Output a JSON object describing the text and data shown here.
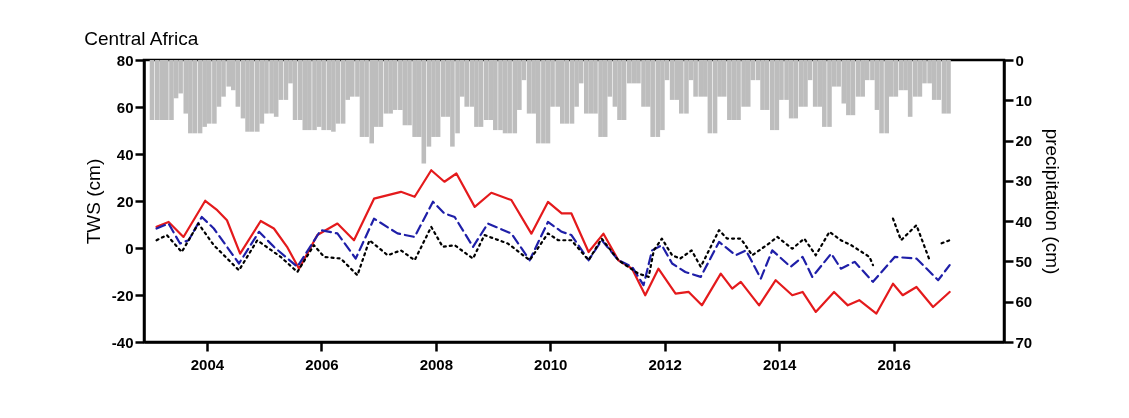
{
  "chart_data": {
    "type": "line",
    "title": "Central Africa",
    "ylabel": "TWS (cm)",
    "y2label": "precipitation (cm)",
    "xlim": [
      2002.9,
      2017.93
    ],
    "xticks": [
      2004,
      2006,
      2008,
      2010,
      2012,
      2014,
      2016
    ],
    "ylim": [
      -40,
      80
    ],
    "yticks": [
      -40,
      -20,
      0,
      20,
      40,
      60,
      80
    ],
    "y2lim": [
      70,
      0
    ],
    "y2ticks": [
      0,
      10,
      20,
      30,
      40,
      50,
      60,
      70
    ],
    "series": [
      {
        "type": "bar",
        "axis": "y2",
        "color": "#bdbdbd",
        "x": [
          2003.04,
          2003.13,
          2003.21,
          2003.29,
          2003.38,
          2003.46,
          2003.54,
          2003.63,
          2003.71,
          2003.79,
          2003.88,
          2003.96,
          2004.04,
          2004.13,
          2004.21,
          2004.29,
          2004.38,
          2004.46,
          2004.54,
          2004.63,
          2004.71,
          2004.79,
          2004.88,
          2004.96,
          2005.04,
          2005.13,
          2005.21,
          2005.29,
          2005.38,
          2005.46,
          2005.54,
          2005.63,
          2005.71,
          2005.79,
          2005.88,
          2005.96,
          2006.04,
          2006.13,
          2006.21,
          2006.29,
          2006.38,
          2006.46,
          2006.54,
          2006.63,
          2006.71,
          2006.79,
          2006.88,
          2006.96,
          2007.04,
          2007.13,
          2007.21,
          2007.29,
          2007.38,
          2007.46,
          2007.54,
          2007.63,
          2007.71,
          2007.79,
          2007.88,
          2007.96,
          2008.04,
          2008.13,
          2008.21,
          2008.29,
          2008.38,
          2008.46,
          2008.54,
          2008.63,
          2008.71,
          2008.79,
          2008.88,
          2008.96,
          2009.04,
          2009.13,
          2009.21,
          2009.29,
          2009.38,
          2009.46,
          2009.54,
          2009.63,
          2009.71,
          2009.79,
          2009.88,
          2009.96,
          2010.04,
          2010.13,
          2010.21,
          2010.29,
          2010.38,
          2010.46,
          2010.54,
          2010.63,
          2010.71,
          2010.79,
          2010.88,
          2010.96,
          2011.04,
          2011.13,
          2011.21,
          2011.29,
          2011.38,
          2011.46,
          2011.54,
          2011.63,
          2011.71,
          2011.79,
          2011.88,
          2011.96,
          2012.04,
          2012.13,
          2012.21,
          2012.29,
          2012.38,
          2012.46,
          2012.54,
          2012.63,
          2012.71,
          2012.79,
          2012.88,
          2012.96,
          2013.04,
          2013.13,
          2013.21,
          2013.29,
          2013.38,
          2013.46,
          2013.54,
          2013.63,
          2013.71,
          2013.79,
          2013.88,
          2013.96,
          2014.04,
          2014.13,
          2014.21,
          2014.29,
          2014.38,
          2014.46,
          2014.54,
          2014.63,
          2014.71,
          2014.79,
          2014.88,
          2014.96,
          2015.04,
          2015.13,
          2015.21,
          2015.29,
          2015.38,
          2015.46,
          2015.54,
          2015.63,
          2015.71,
          2015.79,
          2015.88,
          2015.96,
          2016.04,
          2016.13,
          2016.21,
          2016.29,
          2016.38,
          2016.46,
          2016.54,
          2016.63,
          2016.71,
          2016.79,
          2016.88,
          2016.96
        ],
        "values": [
          14.9,
          14.9,
          14.9,
          14.9,
          14.9,
          9.5,
          8.3,
          13.3,
          18.2,
          18.2,
          18.2,
          16.6,
          15.8,
          15.8,
          11.6,
          9.1,
          6.6,
          7.5,
          11.6,
          14.5,
          17.8,
          17.8,
          17.8,
          15.8,
          13.3,
          13.3,
          14.1,
          9.9,
          9.9,
          5.8,
          14.9,
          14.9,
          17.4,
          17.4,
          17.4,
          16.6,
          17.4,
          17.4,
          17.8,
          15.8,
          15.8,
          9.9,
          9.1,
          9.1,
          19.1,
          19.1,
          20.7,
          16.6,
          16.6,
          13.3,
          13.3,
          12.4,
          12.4,
          16.2,
          16.2,
          19.1,
          19.1,
          25.7,
          21.5,
          19.1,
          19.1,
          14.1,
          14.1,
          21.5,
          18.2,
          9.1,
          11.6,
          11.6,
          16.6,
          16.6,
          14.9,
          14.9,
          17.4,
          17.4,
          18.2,
          18.2,
          18.2,
          12.4,
          5.0,
          13.3,
          13.3,
          20.7,
          20.7,
          20.7,
          11.6,
          11.6,
          15.8,
          15.8,
          15.8,
          11.6,
          5.8,
          13.3,
          13.3,
          13.3,
          19.1,
          19.1,
          9.1,
          11.6,
          14.9,
          14.9,
          5.8,
          5.8,
          5.8,
          11.6,
          11.6,
          19.1,
          19.1,
          17.4,
          5.0,
          9.9,
          9.9,
          13.3,
          13.3,
          5.0,
          9.1,
          9.1,
          9.1,
          18.2,
          18.2,
          9.1,
          9.1,
          14.9,
          14.9,
          14.9,
          11.6,
          11.6,
          5.0,
          5.0,
          12.4,
          12.4,
          17.4,
          17.4,
          9.9,
          9.9,
          14.5,
          14.5,
          11.6,
          11.6,
          5.0,
          11.6,
          11.6,
          16.6,
          16.6,
          6.6,
          6.6,
          10.8,
          13.7,
          13.7,
          9.1,
          9.1,
          5.0,
          5.0,
          12.4,
          18.2,
          18.2,
          9.1,
          9.1,
          7.5,
          7.5,
          14.1,
          9.1,
          9.1,
          5.8,
          5.8,
          9.9,
          9.9,
          13.3,
          13.3
        ]
      },
      {
        "color": "#e41a1c",
        "line_style": "solid",
        "x": [
          2003.12,
          2003.33,
          2003.59,
          2003.97,
          2004.18,
          2004.35,
          2004.58,
          2004.94,
          2005.17,
          2005.4,
          2005.61,
          2005.93,
          2006.28,
          2006.57,
          2006.92,
          2007.39,
          2007.63,
          2007.92,
          2008.15,
          2008.36,
          2008.68,
          2008.97,
          2009.32,
          2009.67,
          2009.96,
          2010.2,
          2010.37,
          2010.67,
          2010.93,
          2011.19,
          2011.43,
          2011.66,
          2011.89,
          2012.19,
          2012.42,
          2012.65,
          2012.98,
          2013.18,
          2013.33,
          2013.65,
          2013.94,
          2014.23,
          2014.41,
          2014.64,
          2014.96,
          2015.2,
          2015.4,
          2015.7,
          2015.99,
          2016.16,
          2016.4,
          2016.69,
          2016.98
        ],
        "values": [
          9.0,
          11.1,
          4.7,
          20.1,
          16.1,
          11.8,
          -2.4,
          11.5,
          8.3,
          0.5,
          -8.8,
          5.5,
          10.4,
          3.3,
          21.0,
          23.9,
          21.8,
          33.1,
          28.2,
          31.7,
          17.5,
          23.5,
          20.4,
          6.1,
          19.6,
          14.7,
          14.7,
          -1.7,
          6.1,
          -5.2,
          -8.8,
          -20.1,
          -8.8,
          -19.4,
          -18.7,
          -24.4,
          -10.9,
          -17.3,
          -14.4,
          -24.4,
          -13.7,
          -20.1,
          -18.7,
          -27.2,
          -18.7,
          -24.4,
          -22.2,
          -27.9,
          -15.2,
          -20.1,
          -16.6,
          -25.1,
          -18.7
        ]
      },
      {
        "color": "#1f1fa8",
        "line_style": "dashed",
        "x": [
          2003.12,
          2003.33,
          2003.53,
          2003.68,
          2003.91,
          2004.12,
          2004.35,
          2004.56,
          2004.91,
          2005.17,
          2005.58,
          2005.99,
          2006.28,
          2006.6,
          2006.92,
          2007.33,
          2007.63,
          2007.95,
          2008.15,
          2008.33,
          2008.65,
          2008.91,
          2009.32,
          2009.64,
          2009.96,
          2010.2,
          2010.37,
          2010.67,
          2010.9,
          2011.19,
          2011.43,
          2011.63,
          2011.78,
          2011.95,
          2012.13,
          2012.36,
          2012.63,
          2012.95,
          2013.24,
          2013.42,
          2013.68,
          2013.88,
          2014.2,
          2014.41,
          2014.58,
          2014.91,
          2015.08,
          2015.32,
          2015.64,
          2016.02,
          2016.4,
          2016.78,
          2016.98
        ],
        "values": [
          8.3,
          10.4,
          1.9,
          3.3,
          13.2,
          8.3,
          0.5,
          -6.6,
          6.9,
          0.5,
          -8.0,
          7.6,
          6.2,
          -4.5,
          12.5,
          6.2,
          4.7,
          19.7,
          14.7,
          13.2,
          0.5,
          10.4,
          6.2,
          -5.2,
          11.1,
          6.9,
          5.5,
          -5.2,
          3.3,
          -5.2,
          -8.0,
          -15.8,
          -1.0,
          1.2,
          -6.6,
          -10.2,
          -12.3,
          2.6,
          -3.1,
          -1.0,
          -13.0,
          -1.0,
          -8.0,
          -3.8,
          -12.3,
          -2.4,
          -8.8,
          -5.9,
          -14.4,
          -3.8,
          -4.5,
          -13.7,
          -7.3
        ]
      },
      {
        "color": "#000000",
        "line_style": "dotted",
        "x": [
          2003.12,
          2003.3,
          2003.56,
          2003.85,
          2004.12,
          2004.56,
          2004.88,
          2005.29,
          2005.58,
          2005.87,
          2006.05,
          2006.34,
          2006.63,
          2006.84,
          2007.16,
          2007.39,
          2007.63,
          2007.92,
          2008.12,
          2008.33,
          2008.65,
          2008.85,
          2009.26,
          2009.64,
          2009.96,
          2010.14,
          2010.37,
          2010.67,
          2010.9,
          2011.19,
          2011.54,
          2011.72,
          2011.81,
          2011.95,
          2012.13,
          2012.27,
          2012.47,
          2012.63,
          2012.95,
          2013.09,
          2013.33,
          2013.53,
          2013.82,
          2013.97,
          2014.23,
          2014.44,
          2014.64,
          2014.88,
          2015.08,
          2015.26,
          2015.58,
          2015.64,
          2015.8,
          2015.99,
          2016.13,
          2016.4,
          2016.63,
          2016.8,
          2016.84,
          2016.98
        ],
        "values": [
          3.3,
          5.5,
          -1.7,
          10.4,
          1.2,
          -9.5,
          3.3,
          -3.8,
          -10.2,
          1.2,
          -3.8,
          -4.5,
          -11.6,
          3.3,
          -3.1,
          -1.0,
          -5.2,
          9.0,
          0.5,
          1.2,
          -4.5,
          5.5,
          1.9,
          -5.2,
          6.2,
          3.3,
          3.3,
          -5.2,
          4.0,
          -5.2,
          -10.9,
          -12.3,
          -1.0,
          4.0,
          -3.1,
          -4.5,
          -1.0,
          -8.0,
          7.6,
          4.0,
          4.0,
          -3.1,
          1.9,
          4.7,
          -0.3,
          4.0,
          -3.1,
          6.9,
          3.3,
          1.2,
          -3.8,
          -7.3,
          null,
          12.5,
          3.3,
          9.7,
          -5.2,
          null,
          2.0,
          3.3
        ]
      }
    ]
  }
}
